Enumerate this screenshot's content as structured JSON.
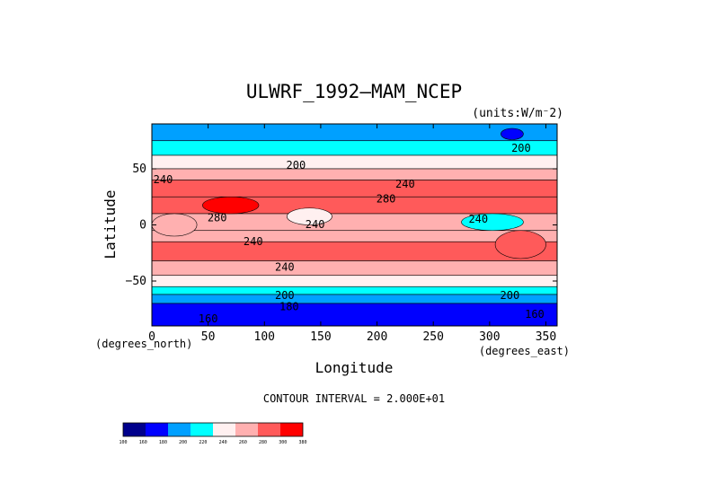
{
  "chart_data": {
    "type": "heatmap",
    "title": "ULWRF_1992—MAM_NCEP",
    "units_label": "(units:W/m⁻2)",
    "xlabel": "Longitude",
    "ylabel": "Latitude",
    "x_unit_label": "(degrees_east)",
    "y_unit_label": "(degrees_north)",
    "xlim": [
      0,
      360
    ],
    "ylim": [
      -90,
      90
    ],
    "x_ticks": [
      0,
      50,
      100,
      150,
      200,
      250,
      300,
      350
    ],
    "y_ticks": [
      50,
      0,
      -50
    ],
    "x_tick_labels": [
      "0",
      "50",
      "100",
      "150",
      "200",
      "250",
      "300",
      "350"
    ],
    "y_tick_labels": [
      "50",
      "0",
      "−50"
    ],
    "contour_interval_text": "CONTOUR INTERVAL = 2.000E+01",
    "color_levels": [
      {
        "label": "100",
        "color": "#00008c"
      },
      {
        "label": "160",
        "color": "#0000ff"
      },
      {
        "label": "180",
        "color": "#00a0ff"
      },
      {
        "label": "200",
        "color": "#00ffff"
      },
      {
        "label": "220",
        "color": "#fff0f0"
      },
      {
        "label": "240",
        "color": "#ffb0b0"
      },
      {
        "label": "260",
        "color": "#ff5a5a"
      },
      {
        "label": "280",
        "color": "#ff0000"
      },
      {
        "label": "300",
        "color": "#ff0000"
      },
      {
        "label": "380",
        "color": "#ff0000"
      }
    ],
    "lat_bands": [
      {
        "lat": [
          75,
          90
        ],
        "value": 180
      },
      {
        "lat": [
          62,
          75
        ],
        "value": 200
      },
      {
        "lat": [
          50,
          62
        ],
        "value": 220
      },
      {
        "lat": [
          40,
          50
        ],
        "value": 240
      },
      {
        "lat": [
          25,
          40
        ],
        "value": 260
      },
      {
        "lat": [
          10,
          25
        ],
        "value": 270
      },
      {
        "lat": [
          -5,
          10
        ],
        "value": 240
      },
      {
        "lat": [
          -15,
          -5
        ],
        "value": 250
      },
      {
        "lat": [
          -32,
          -15
        ],
        "value": 260
      },
      {
        "lat": [
          -45,
          -32
        ],
        "value": 240
      },
      {
        "lat": [
          -55,
          -45
        ],
        "value": 220
      },
      {
        "lat": [
          -62,
          -55
        ],
        "value": 200
      },
      {
        "lat": [
          -70,
          -62
        ],
        "value": 180
      },
      {
        "lat": [
          -90,
          -70
        ],
        "value": 160
      }
    ],
    "features": [
      {
        "lon": [
          45,
          95
        ],
        "lat": [
          10,
          25
        ],
        "value": 290
      },
      {
        "lon": [
          305,
          350
        ],
        "lat": [
          -30,
          -5
        ],
        "value": 270
      },
      {
        "lon": [
          120,
          160
        ],
        "lat": [
          0,
          15
        ],
        "value": 220
      },
      {
        "lon": [
          275,
          330
        ],
        "lat": [
          -5,
          10
        ],
        "value": 200
      },
      {
        "lon": [
          0,
          40
        ],
        "lat": [
          -10,
          10
        ],
        "value": 250
      },
      {
        "lon": [
          310,
          330
        ],
        "lat": [
          76,
          86
        ],
        "value": 160
      }
    ],
    "contour_labels": [
      {
        "text": "200",
        "lon": 128,
        "lat": 53
      },
      {
        "text": "200",
        "lon": 328,
        "lat": 68
      },
      {
        "text": "240",
        "lon": 10,
        "lat": 40
      },
      {
        "text": "240",
        "lon": 225,
        "lat": 36
      },
      {
        "text": "280",
        "lon": 208,
        "lat": 23
      },
      {
        "text": "280",
        "lon": 58,
        "lat": 6
      },
      {
        "text": "240",
        "lon": 145,
        "lat": 0
      },
      {
        "text": "240",
        "lon": 290,
        "lat": 5
      },
      {
        "text": "240",
        "lon": 90,
        "lat": -15
      },
      {
        "text": "240",
        "lon": 118,
        "lat": -38
      },
      {
        "text": "200",
        "lon": 118,
        "lat": -63
      },
      {
        "text": "200",
        "lon": 318,
        "lat": -63
      },
      {
        "text": "180",
        "lon": 122,
        "lat": -73
      },
      {
        "text": "160",
        "lon": 50,
        "lat": -84
      },
      {
        "text": "160",
        "lon": 340,
        "lat": -80
      }
    ]
  }
}
